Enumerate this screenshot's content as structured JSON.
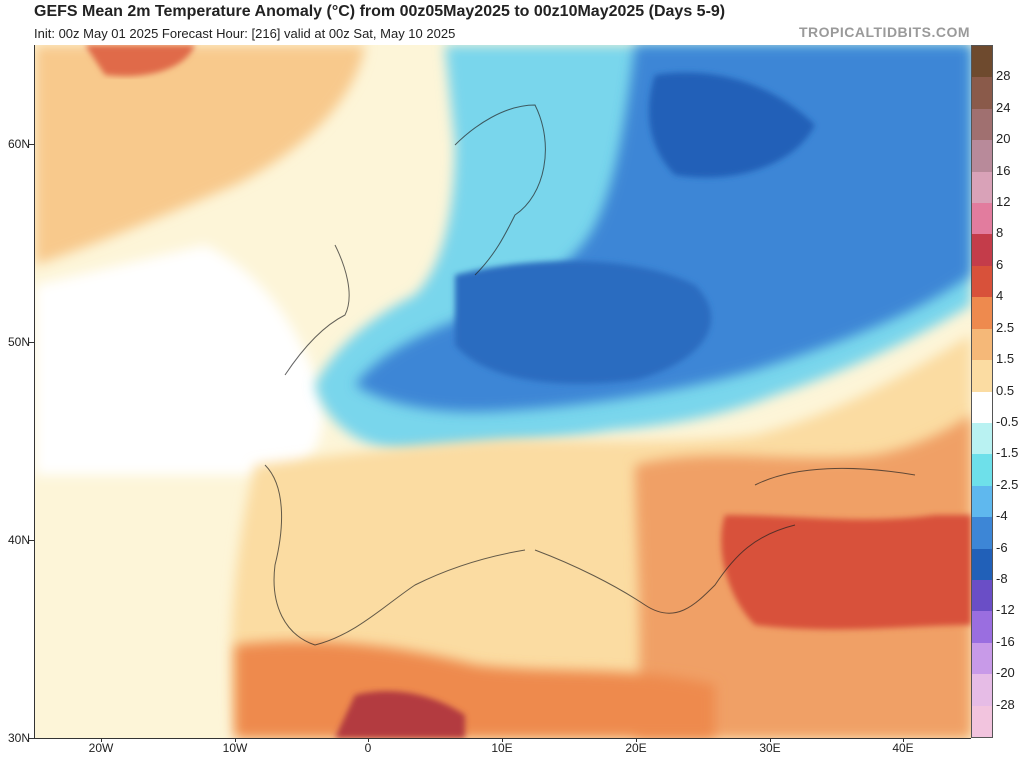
{
  "header": {
    "title": "GEFS Mean 2m Temperature Anomaly (°C) from 00z05May2025 to 00z10May2025 (Days 5-9)",
    "subtitle": "Init: 00z May 01 2025   Forecast Hour: [216]   valid at 00z Sat, May 10 2025",
    "brand": "TROPICALTIDBITS.COM"
  },
  "map": {
    "region": "Europe / North Africa / Near East",
    "projection": "equirectangular",
    "lon_range": [
      -25,
      45
    ],
    "lat_range": [
      30,
      65
    ],
    "lat_labels": [
      "60N",
      "50N",
      "40N",
      "30N"
    ],
    "lon_labels": [
      "20W",
      "10W",
      "0",
      "10E",
      "20E",
      "30E",
      "40E"
    ]
  },
  "colorbar": {
    "labels": [
      "28",
      "24",
      "20",
      "16",
      "12",
      "8",
      "6",
      "4",
      "2.5",
      "1.5",
      "0.5",
      "-0.5",
      "-1.5",
      "-2.5",
      "-4",
      "-6",
      "-8",
      "-12",
      "-16",
      "-20",
      "-28"
    ],
    "colors": [
      "#6e4a2e",
      "#8a5a4a",
      "#a07070",
      "#b88a9a",
      "#d9a2b8",
      "#e27c9e",
      "#c43c4a",
      "#d8513a",
      "#ee8a4e",
      "#f5b878",
      "#fbdca2",
      "#ffffff",
      "#b9f2f2",
      "#6ee0ea",
      "#5fb8ee",
      "#3d86d6",
      "#2160b8",
      "#6a4ec6",
      "#9a6ee0",
      "#c89ae8",
      "#e6bce6",
      "#f2c4de"
    ]
  }
}
